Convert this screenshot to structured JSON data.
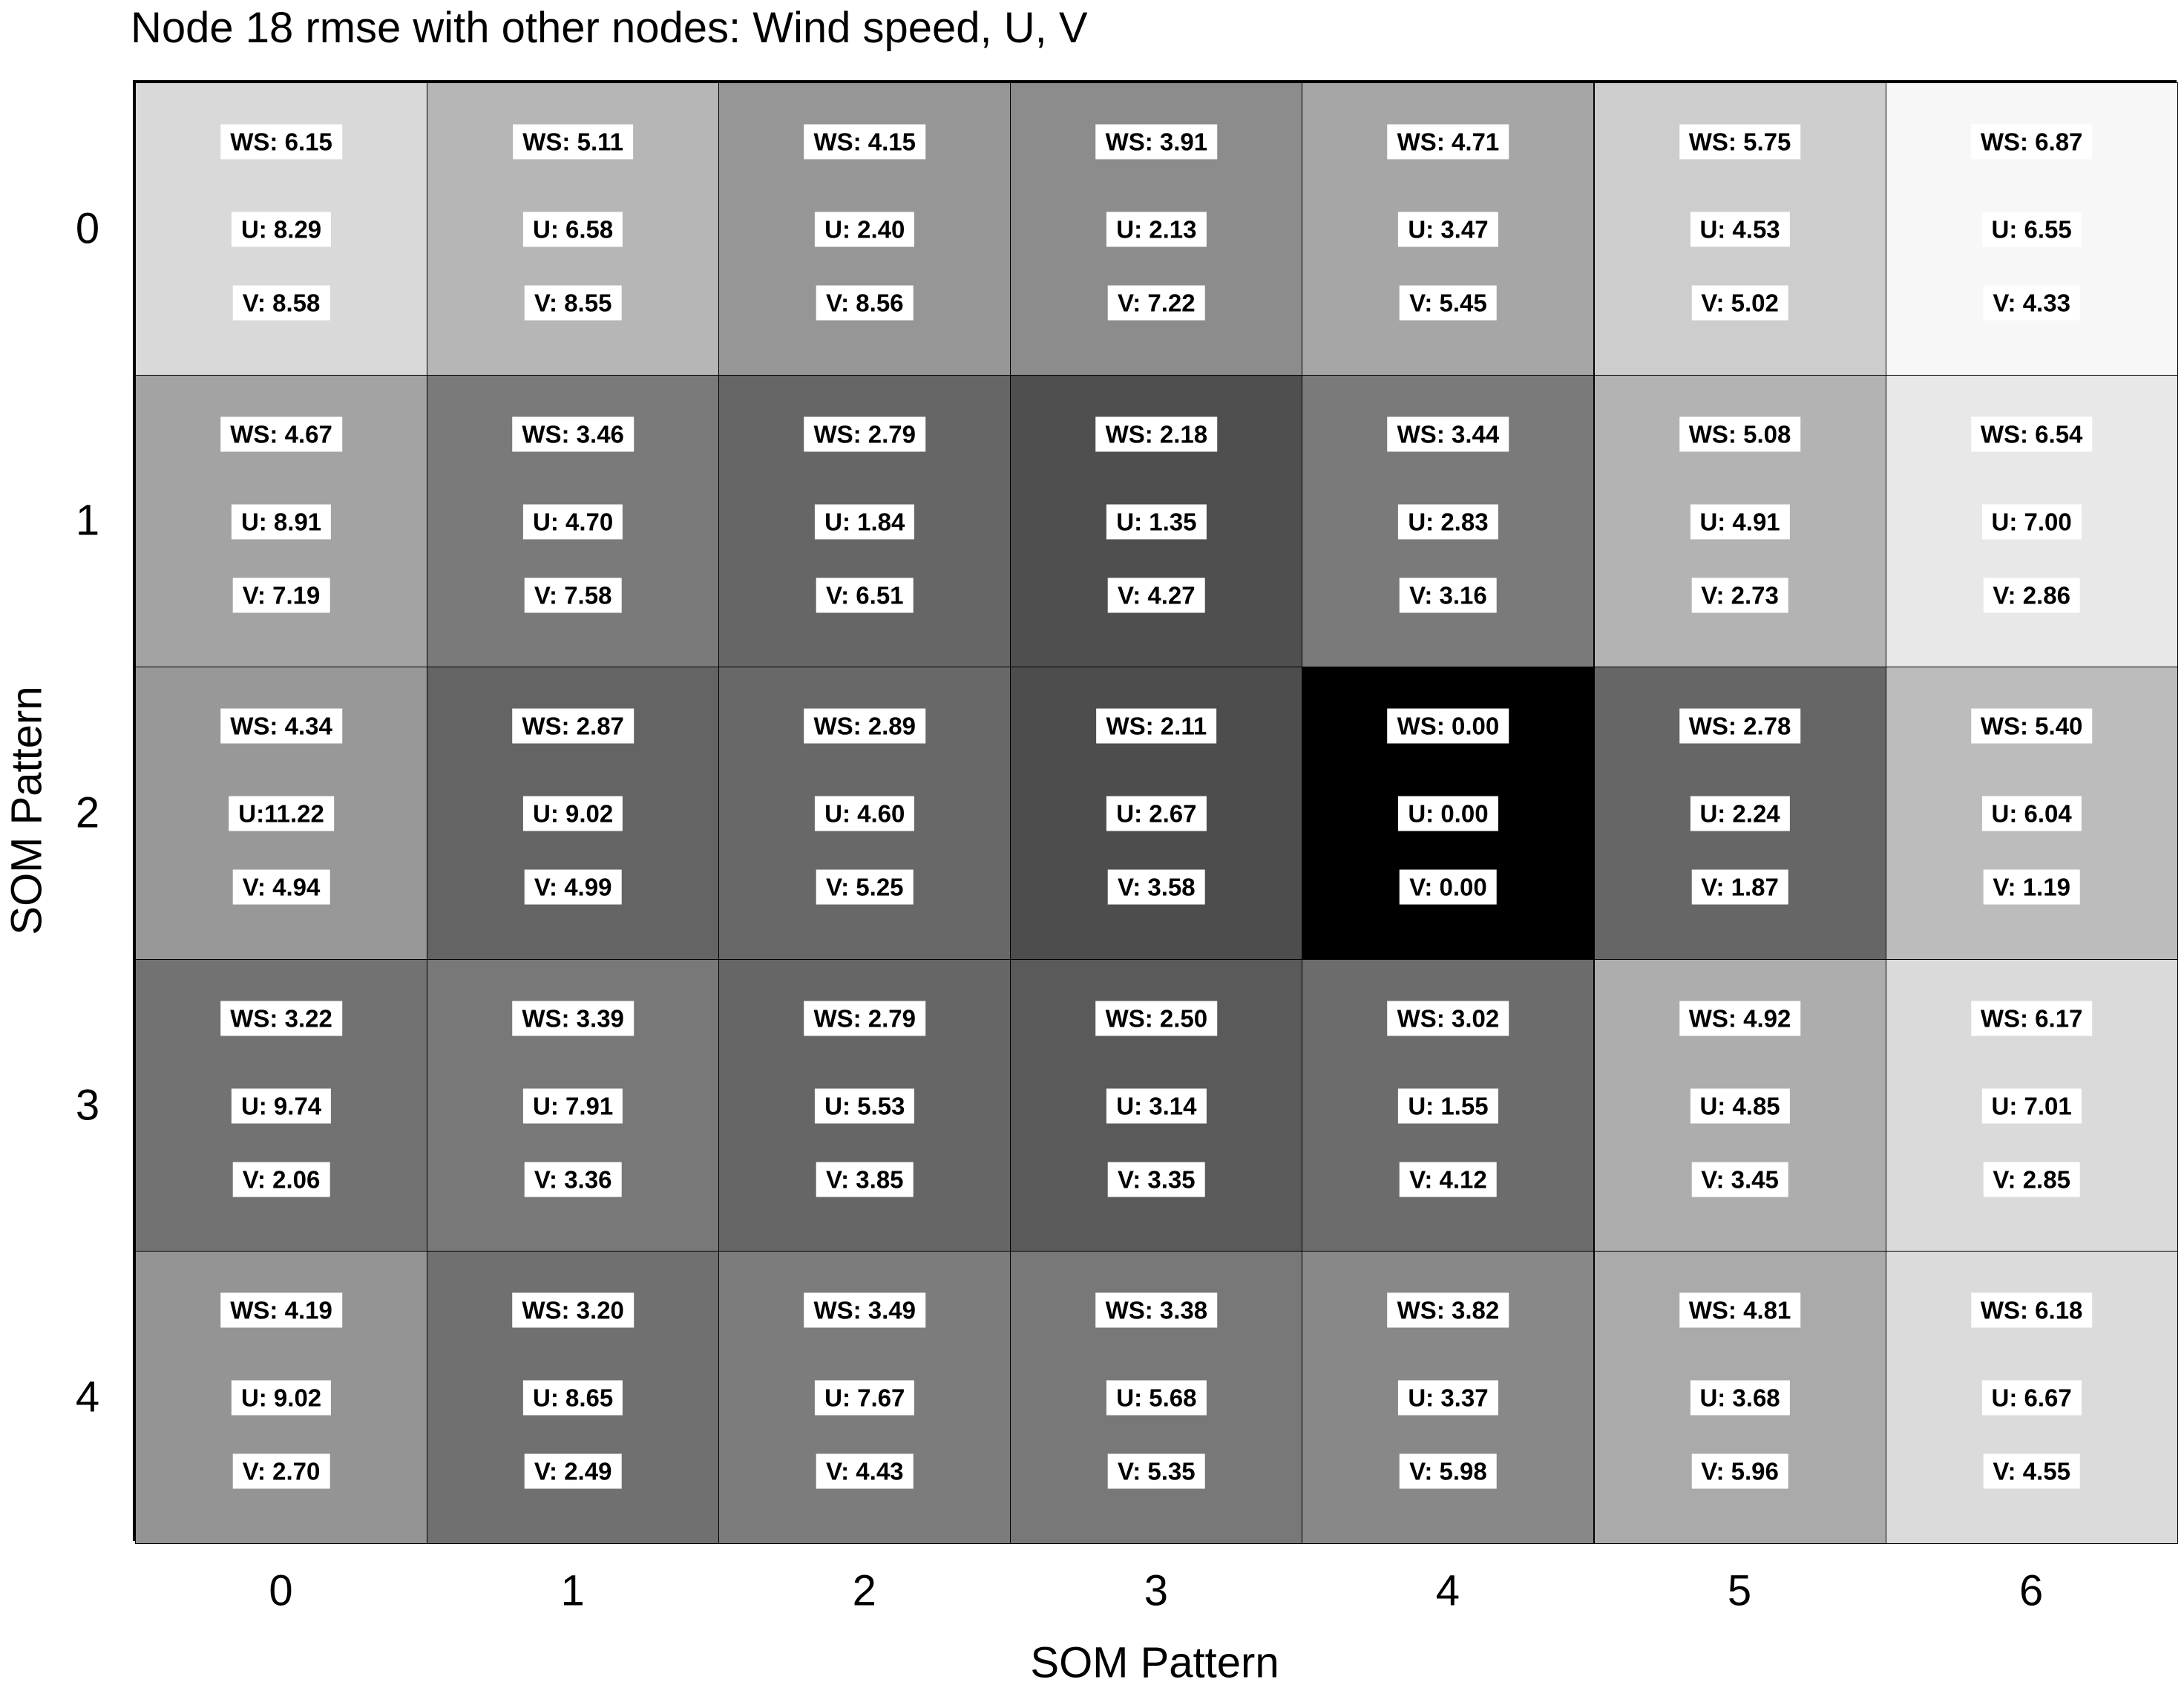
{
  "chart_data": {
    "type": "heatmap",
    "title": "Node 18 rmse with other nodes: Wind speed, U, V",
    "xlabel": "SOM Pattern",
    "ylabel": "SOM Pattern",
    "x_ticks": [
      "0",
      "1",
      "2",
      "3",
      "4",
      "5",
      "6"
    ],
    "y_ticks": [
      "0",
      "1",
      "2",
      "3",
      "4"
    ],
    "colormap": "grayscale (dark = low WS rmse, light = high WS rmse)",
    "prefixes": [
      "WS: ",
      "U: ",
      "V: "
    ],
    "rows": [
      [
        {
          "ws": "6.15",
          "u": "8.29",
          "v": "8.58",
          "color": "#d9d9d9"
        },
        {
          "ws": "5.11",
          "u": "6.58",
          "v": "8.55",
          "color": "#b6b6b6"
        },
        {
          "ws": "4.15",
          "u": "2.40",
          "v": "8.56",
          "color": "#969696"
        },
        {
          "ws": "3.91",
          "u": "2.13",
          "v": "7.22",
          "color": "#8c8c8c"
        },
        {
          "ws": "4.71",
          "u": "3.47",
          "v": "5.45",
          "color": "#a6a6a6"
        },
        {
          "ws": "5.75",
          "u": "4.53",
          "v": "5.02",
          "color": "#cdcdcd"
        },
        {
          "ws": "6.87",
          "u": "6.55",
          "v": "4.33",
          "color": "#f7f7f7"
        }
      ],
      [
        {
          "ws": "4.67",
          "u": "8.91",
          "v": "7.19",
          "color": "#a3a3a3"
        },
        {
          "ws": "3.46",
          "u": "4.70",
          "v": "7.58",
          "color": "#7a7a7a"
        },
        {
          "ws": "2.79",
          "u": "1.84",
          "v": "6.51",
          "color": "#666666"
        },
        {
          "ws": "2.18",
          "u": "1.35",
          "v": "4.27",
          "color": "#4f4f4f"
        },
        {
          "ws": "3.44",
          "u": "2.83",
          "v": "3.16",
          "color": "#7a7a7a"
        },
        {
          "ws": "5.08",
          "u": "4.91",
          "v": "2.73",
          "color": "#b3b3b3"
        },
        {
          "ws": "6.54",
          "u": "7.00",
          "v": "2.86",
          "color": "#e8e8e8"
        }
      ],
      [
        {
          "ws": "4.34",
          "u": "11.22",
          "v": "4.94",
          "color": "#989898",
          "u_label": "U:11.22"
        },
        {
          "ws": "2.87",
          "u": "9.02",
          "v": "4.99",
          "color": "#646464"
        },
        {
          "ws": "2.89",
          "u": "4.60",
          "v": "5.25",
          "color": "#686868"
        },
        {
          "ws": "2.11",
          "u": "2.67",
          "v": "3.58",
          "color": "#4d4d4d"
        },
        {
          "ws": "0.00",
          "u": "0.00",
          "v": "0.00",
          "color": "#000000"
        },
        {
          "ws": "2.78",
          "u": "2.24",
          "v": "1.87",
          "color": "#666666"
        },
        {
          "ws": "5.40",
          "u": "6.04",
          "v": "1.19",
          "color": "#bcbcbc"
        }
      ],
      [
        {
          "ws": "3.22",
          "u": "9.74",
          "v": "2.06",
          "color": "#727272"
        },
        {
          "ws": "3.39",
          "u": "7.91",
          "v": "3.36",
          "color": "#787878"
        },
        {
          "ws": "2.79",
          "u": "5.53",
          "v": "3.85",
          "color": "#666666"
        },
        {
          "ws": "2.50",
          "u": "3.14",
          "v": "3.35",
          "color": "#5a5a5a"
        },
        {
          "ws": "3.02",
          "u": "1.55",
          "v": "4.12",
          "color": "#6c6c6c"
        },
        {
          "ws": "4.92",
          "u": "4.85",
          "v": "3.45",
          "color": "#adadad"
        },
        {
          "ws": "6.17",
          "u": "7.01",
          "v": "2.85",
          "color": "#dadada"
        }
      ],
      [
        {
          "ws": "4.19",
          "u": "9.02",
          "v": "2.70",
          "color": "#949494"
        },
        {
          "ws": "3.20",
          "u": "8.65",
          "v": "2.49",
          "color": "#707070"
        },
        {
          "ws": "3.49",
          "u": "7.67",
          "v": "4.43",
          "color": "#7c7c7c"
        },
        {
          "ws": "3.38",
          "u": "5.68",
          "v": "5.35",
          "color": "#787878"
        },
        {
          "ws": "3.82",
          "u": "3.37",
          "v": "5.98",
          "color": "#888888"
        },
        {
          "ws": "4.81",
          "u": "3.68",
          "v": "5.96",
          "color": "#aaaaaa"
        },
        {
          "ws": "6.18",
          "u": "6.67",
          "v": "4.55",
          "color": "#dbdbdb"
        }
      ]
    ]
  }
}
